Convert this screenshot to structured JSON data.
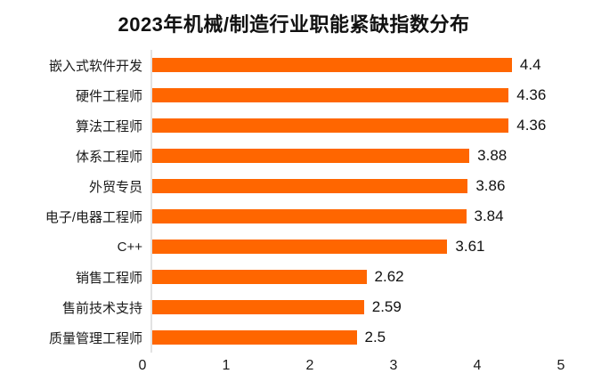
{
  "chart_data": {
    "type": "bar",
    "orientation": "horizontal",
    "title": "2023年机械/制造行业职能紧缺指数分布",
    "categories": [
      "嵌入式软件开发",
      "硬件工程师",
      "算法工程师",
      "体系工程师",
      "外贸专员",
      "电子/电器工程师",
      "C++",
      "销售工程师",
      "售前技术支持",
      "质量管理工程师"
    ],
    "values": [
      4.4,
      4.36,
      4.36,
      3.88,
      3.86,
      3.84,
      3.61,
      2.62,
      2.59,
      2.5
    ],
    "value_labels": [
      "4.4",
      "4.36",
      "4.36",
      "3.88",
      "3.86",
      "3.84",
      "3.61",
      "2.62",
      "2.59",
      "2.5"
    ],
    "xlabel": "",
    "ylabel": "",
    "xlim": [
      0,
      5
    ],
    "x_ticks": [
      "0",
      "1",
      "2",
      "3",
      "4",
      "5"
    ],
    "grid": false,
    "legend": false,
    "bar_color": "#FF6600",
    "axis_line_color": "#e2e2e2"
  }
}
